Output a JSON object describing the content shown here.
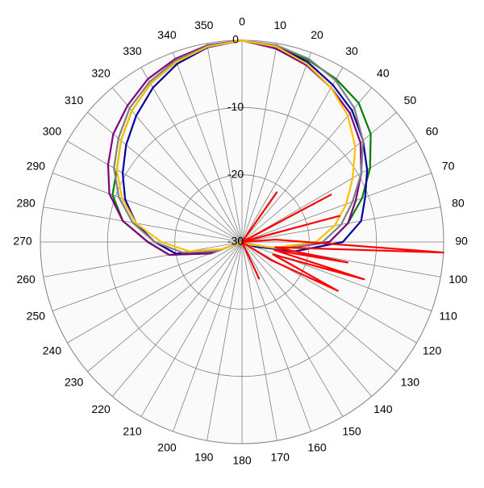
{
  "chart_data": {
    "type": "polar",
    "rlim": [
      -30,
      0
    ],
    "rticks": [
      0,
      -10,
      -20,
      -30
    ],
    "thetaticks": [
      0,
      10,
      20,
      30,
      40,
      50,
      60,
      70,
      80,
      90,
      100,
      110,
      120,
      130,
      140,
      150,
      160,
      170,
      180,
      190,
      200,
      210,
      220,
      230,
      240,
      250,
      260,
      270,
      280,
      290,
      300,
      310,
      320,
      330,
      340,
      350
    ],
    "theta": [
      0,
      10,
      20,
      30,
      40,
      50,
      60,
      70,
      80,
      90,
      100,
      110,
      120,
      130,
      140,
      150,
      160,
      170,
      180,
      190,
      200,
      210,
      220,
      230,
      240,
      250,
      260,
      270,
      280,
      290,
      300,
      310,
      320,
      330,
      340,
      350
    ],
    "series": [
      {
        "color": "#008000",
        "values": [
          0,
          -0.5,
          -1.2,
          -2,
          -3,
          -5,
          -8,
          -11,
          -14,
          -17,
          -25,
          -28,
          -30,
          -30,
          -30,
          -30,
          -30,
          -30,
          -30,
          -30,
          -30,
          -30,
          -30,
          -30,
          -30,
          -25,
          -19,
          -16,
          -12,
          -9.5,
          -8.5,
          -6.5,
          -4.5,
          -2.8,
          -1.5,
          -0.5
        ]
      },
      {
        "color": "#0000a0",
        "values": [
          0,
          -0.5,
          -1.5,
          -3,
          -4.5,
          -6.5,
          -8.5,
          -10.5,
          -12,
          -15,
          -22,
          -28,
          -30,
          -30,
          -30,
          -30,
          -30,
          -30,
          -30,
          -30,
          -30,
          -30,
          -30,
          -30,
          -30,
          -26,
          -20,
          -17,
          -14,
          -11.5,
          -9.5,
          -7.5,
          -5.5,
          -3.5,
          -1.8,
          -0.6
        ]
      },
      {
        "color": "#800080",
        "values": [
          0,
          -0.8,
          -2,
          -3.5,
          -5,
          -7,
          -9.5,
          -12,
          -14,
          -17,
          -24,
          -29,
          -30,
          -30,
          -30,
          -30,
          -30,
          -30,
          -30,
          -30,
          -30,
          -30,
          -30,
          -30,
          -30,
          -25,
          -19,
          -16,
          -12,
          -9,
          -7,
          -5,
          -3.5,
          -2,
          -1,
          -0.3
        ]
      },
      {
        "color": "#808080",
        "values": [
          0,
          -0.3,
          -1,
          -2.2,
          -4,
          -6.5,
          -9.5,
          -12.5,
          -15,
          -18,
          -24,
          -29,
          -30,
          -30,
          -30,
          -30,
          -30,
          -30,
          -30,
          -30,
          -30,
          -30,
          -30,
          -30,
          -30,
          -26,
          -21,
          -17,
          -13.5,
          -10.5,
          -8,
          -6,
          -4,
          -2.5,
          -1.2,
          -0.4
        ]
      },
      {
        "color": "#ffc000",
        "values": [
          0,
          -0.5,
          -1.8,
          -3.5,
          -5.5,
          -8,
          -11,
          -13.5,
          -16,
          -19,
          -25,
          -29,
          -30,
          -30,
          -30,
          -30,
          -30,
          -30,
          -30,
          -30,
          -30,
          -30,
          -30,
          -30,
          -30,
          -27,
          -22,
          -18,
          -14,
          -11,
          -8.5,
          -6.5,
          -4.5,
          -2.8,
          -1.5,
          -0.5
        ]
      },
      {
        "color": "#ff0000",
        "theta": [
          0,
          20,
          35,
          42,
          55,
          62,
          68,
          75,
          80,
          86,
          93,
          99,
          101,
          104,
          107,
          112,
          117,
          122,
          125,
          150,
          155,
          160,
          330
        ],
        "values": [
          -30,
          -30,
          -21,
          -30,
          -30,
          -15,
          -30,
          -15,
          -30,
          -25,
          0,
          -25,
          -14,
          -25,
          -11,
          -25,
          -14,
          -25,
          -30,
          -30,
          -24,
          -30,
          -30
        ]
      }
    ]
  }
}
